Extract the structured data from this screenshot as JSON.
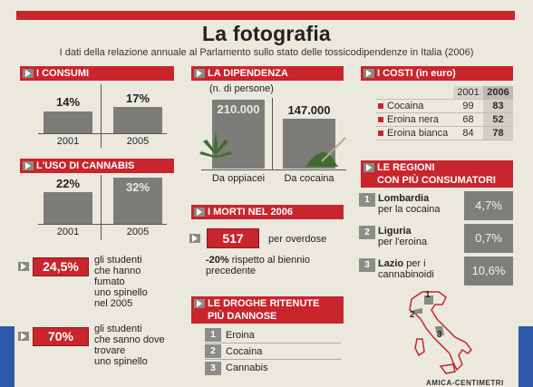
{
  "header": {
    "title": "La fotografia",
    "subtitle": "I dati della relazione annuale al Parlamento sullo stato delle tossicodipendenze in Italia (2006)"
  },
  "consumi": {
    "label": "I CONSUMI",
    "bars": [
      {
        "year": "2001",
        "value": "14%"
      },
      {
        "year": "2005",
        "value": "17%"
      }
    ]
  },
  "cannabis": {
    "label": "L'USO DI CANNABIS",
    "bars": [
      {
        "year": "2001",
        "value": "22%"
      },
      {
        "year": "2005",
        "value": "32%"
      }
    ]
  },
  "studenti": [
    {
      "value": "24,5%",
      "text": [
        "gli studenti",
        "che hanno",
        "fumato",
        "uno spinello",
        "nel 2005"
      ]
    },
    {
      "value": "70%",
      "text": [
        "gli studenti",
        "che sanno dove",
        "trovare",
        "uno spinello"
      ]
    }
  ],
  "dipendenza": {
    "label": "LA DIPENDENZA",
    "note": "(n. di persone)",
    "items": [
      {
        "value": "210.000",
        "label": "Da oppiacei"
      },
      {
        "value": "147.000",
        "label": "Da cocaina"
      }
    ]
  },
  "morti": {
    "label": "I MORTI NEL 2006",
    "value": "517",
    "value_text": "per overdose",
    "change_pct": "-20%",
    "change_text_1": " rispetto al biennio",
    "change_text_2": "precedente"
  },
  "droghe": {
    "label_1": "LE DROGHE RITENUTE",
    "label_2": "PIÙ DANNOSE",
    "items": [
      {
        "n": "1",
        "name": "Eroina"
      },
      {
        "n": "2",
        "name": "Cocaina"
      },
      {
        "n": "3",
        "name": "Cannabis"
      }
    ]
  },
  "costi": {
    "label": "I COSTI (in euro)",
    "years": [
      "2001",
      "2006"
    ],
    "rows": [
      {
        "name": "Cocaina",
        "v2001": "99",
        "v2006": "83"
      },
      {
        "name": "Eroina nera",
        "v2001": "68",
        "v2006": "52"
      },
      {
        "name": "Eroina bianca",
        "v2001": "84",
        "v2006": "78"
      }
    ]
  },
  "regioni": {
    "label_1": "LE REGIONI",
    "label_2": "CON PIÙ CONSUMATORI",
    "items": [
      {
        "n": "1",
        "region": "Lombardia",
        "sub": "per la cocaina",
        "value": "4,7%"
      },
      {
        "n": "2",
        "region": "Liguria",
        "sub": "per l'eroina",
        "value": "0,7%"
      },
      {
        "n": "3",
        "region": "Lazio",
        "sub_1": " per i",
        "sub_2": "cannabinoidi",
        "value": "10,6%"
      }
    ],
    "map_labels": [
      "1",
      "2",
      "3"
    ]
  },
  "footer_fragment": "AMICA-CENTIMETRI",
  "colors": {
    "accent": "#c8252d",
    "bar": "#7c7c78",
    "paper": "#ebe8de",
    "left_edge": "#2e59a8"
  }
}
